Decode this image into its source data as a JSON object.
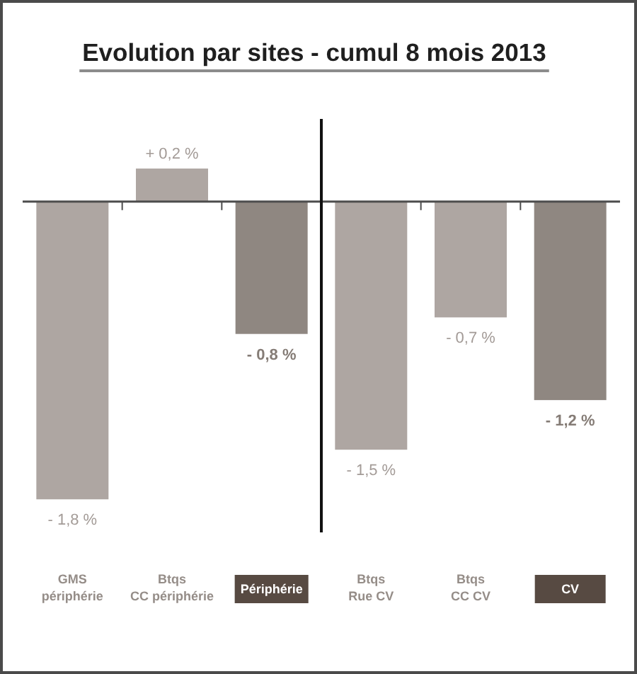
{
  "chart_data": {
    "type": "bar",
    "title": "Evolution par sites - cumul 8 mois 2013",
    "categories": [
      "GMS périphérie",
      "Btqs CC périphérie",
      "Périphérie",
      "Btqs Rue CV",
      "Btqs CC CV",
      "CV"
    ],
    "values": [
      -1.8,
      0.2,
      -0.8,
      -1.5,
      -0.7,
      -1.2
    ],
    "colors": [
      "#aea6a2",
      "#aea6a2",
      "#8f8781",
      "#aea6a2",
      "#aea6a2",
      "#8f8781"
    ],
    "value_labels": [
      "- 1,8 %",
      "+ 0,2 %",
      "- 0,8 %",
      "- 1,5 %",
      "- 0,7 %",
      "- 1,2 %"
    ],
    "ylim": [
      -2,
      0.5
    ],
    "tick_labels": "x"
  }
}
